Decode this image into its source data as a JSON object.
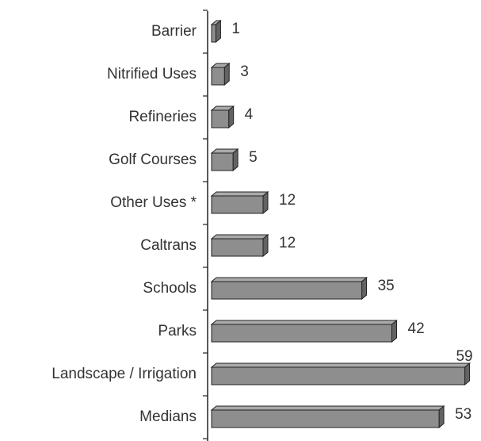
{
  "chart_data": {
    "type": "bar",
    "orientation": "horizontal",
    "categories": [
      "Barrier",
      "Nitrified Uses",
      "Refineries",
      "Golf Courses",
      "Other Uses *",
      "Caltrans",
      "Schools",
      "Parks",
      "Landscape / Irrigation",
      "Medians"
    ],
    "values": [
      1,
      3,
      4,
      5,
      12,
      12,
      35,
      42,
      59,
      53
    ],
    "color": "#8e8e8e",
    "xlim": [
      0,
      60
    ]
  }
}
